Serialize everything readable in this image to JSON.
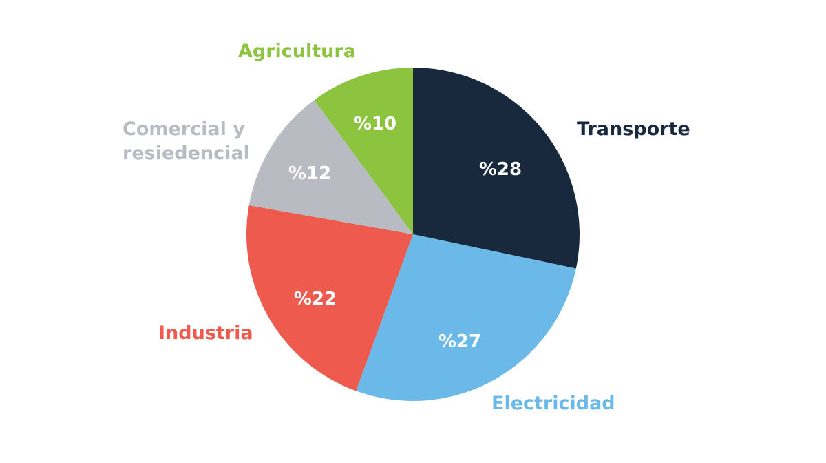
{
  "chart_data": {
    "type": "pie",
    "title": "",
    "categories": [
      "Transporte",
      "Electricidad",
      "Industria",
      "Comercial y resiedencial",
      "Agricultura"
    ],
    "values": [
      28,
      27,
      22,
      12,
      10
    ],
    "value_labels": [
      "%28",
      "%27",
      "%22",
      "%12",
      "%10"
    ],
    "colors": [
      "#18283d",
      "#6bb9e8",
      "#ee5b4e",
      "#b8bcc2",
      "#8cc43f"
    ],
    "start_angle_deg": 0,
    "direction": "clockwise",
    "legend": "none (direct labels)"
  },
  "labels": {
    "transporte": "Transporte",
    "electricidad": "Electricidad",
    "industria": "Industria",
    "comercial_line1": "Comercial y",
    "comercial_line2": "resiedencial",
    "agricultura": "Agricultura"
  },
  "pcts": {
    "transporte": "%28",
    "electricidad": "%27",
    "industria": "%22",
    "comercial": "%12",
    "agricultura": "%10"
  }
}
